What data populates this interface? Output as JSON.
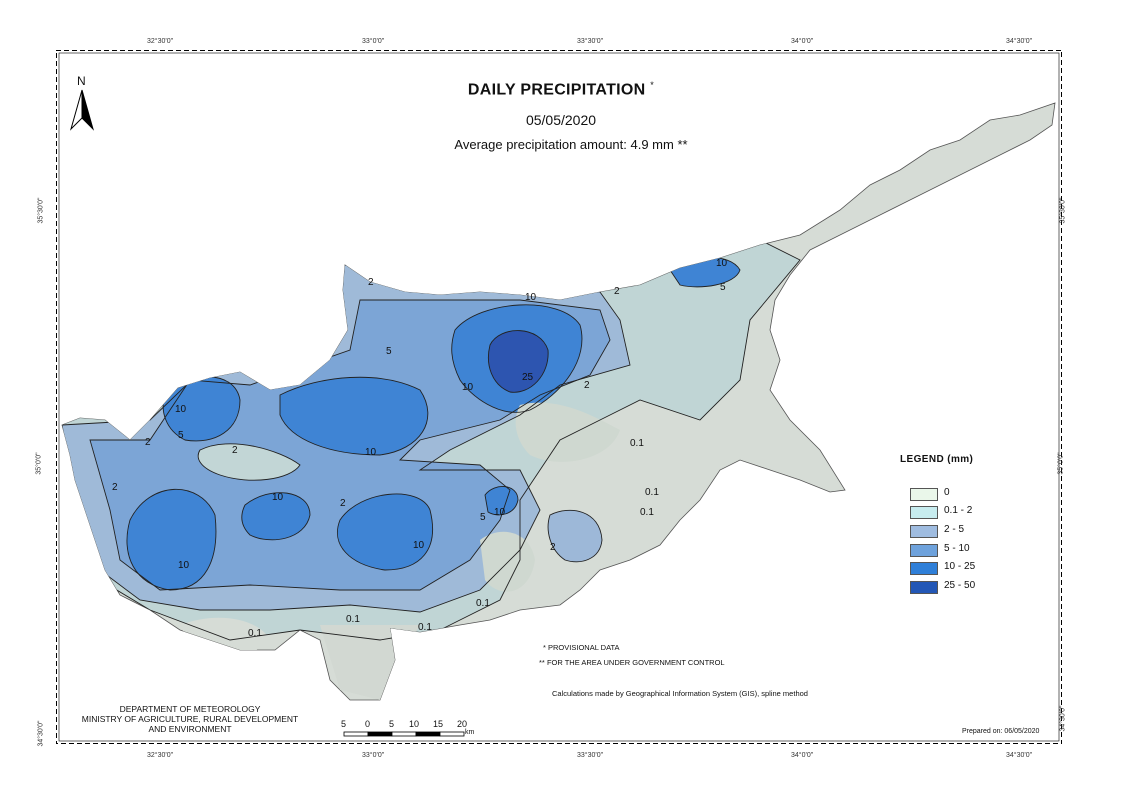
{
  "title": "DAILY PRECIPITATION",
  "title_marker": "*",
  "date": "05/05/2020",
  "average": "Average precipitation amount: 4.9 mm **",
  "north_label": "N",
  "legend": {
    "title": "LEGEND (mm)",
    "items": [
      {
        "label": "0",
        "color": "#eaf7ea"
      },
      {
        "label": "0.1 - 2",
        "color": "#c7ecef"
      },
      {
        "label": "2 - 5",
        "color": "#9fbce0"
      },
      {
        "label": "5 - 10",
        "color": "#6ea2dc"
      },
      {
        "label": "10 - 25",
        "color": "#2f7fd8"
      },
      {
        "label": "25 - 50",
        "color": "#2357b6"
      }
    ]
  },
  "notes": {
    "provisional": "PROVISIONAL DATA",
    "provisional_marker": "*",
    "area": "FOR THE AREA UNDER GOVERNMENT CONTROL",
    "area_marker": "**",
    "method": "Calculations made by Geographical Information System (GIS), spline method",
    "prepared": "Prepared on: 06/05/2020"
  },
  "department": {
    "line1": "DEPARTMENT OF METEOROLOGY",
    "line2": "MINISTRY OF AGRICULTURE, RURAL DEVELOPMENT",
    "line3": "AND ENVIRONMENT"
  },
  "scale_bar": {
    "labels": [
      "5",
      "0",
      "5",
      "10",
      "15",
      "20"
    ],
    "unit": "km"
  },
  "graticule": {
    "longitudes": [
      "32°30'0\"",
      "33°0'0\"",
      "33°30'0\"",
      "34°0'0\"",
      "34°30'0\""
    ],
    "latitudes": [
      "35°30'0\"",
      "35°0'0\"",
      "34°30'0\""
    ]
  },
  "contour_labels": [
    "2",
    "5",
    "10",
    "10",
    "2",
    "2",
    "5",
    "10",
    "2",
    "10",
    "10",
    "5",
    "10",
    "10",
    "2",
    "0.1",
    "0.1",
    "0.1",
    "0.1",
    "10",
    "25",
    "2",
    "0.1",
    "0.1",
    "2",
    "10",
    "5",
    "2",
    "0.1"
  ]
}
